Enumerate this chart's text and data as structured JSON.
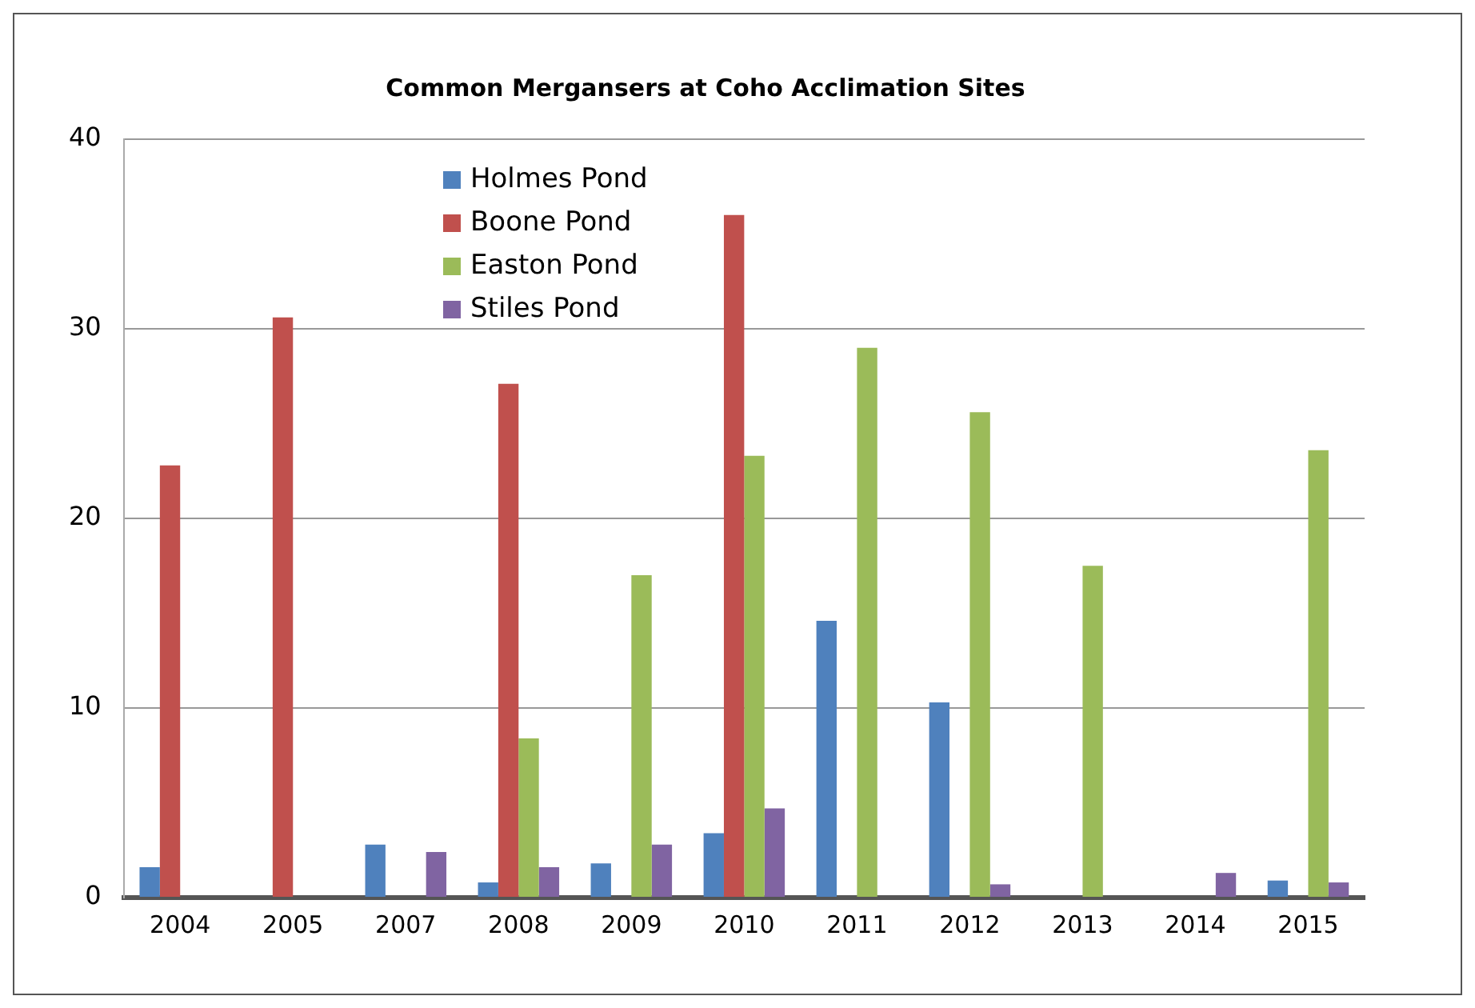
{
  "chart_data": {
    "type": "bar",
    "title": "Common Mergansers at Coho Acclimation Sites",
    "categories": [
      "2004",
      "2005",
      "2007",
      "2008",
      "2009",
      "2010",
      "2011",
      "2012",
      "2013",
      "2014",
      "2015"
    ],
    "series": [
      {
        "name": "Holmes Pond",
        "color": "#4f81bd",
        "values": [
          1.6,
          0,
          2.8,
          0.8,
          1.8,
          3.4,
          14.6,
          10.3,
          0,
          0,
          0.9
        ]
      },
      {
        "name": "Boone Pond",
        "color": "#c0504d",
        "values": [
          22.8,
          30.6,
          0,
          27.1,
          0,
          36,
          0,
          0,
          0,
          0,
          0
        ]
      },
      {
        "name": "Easton Pond",
        "color": "#9bbb59",
        "values": [
          0,
          0,
          0,
          8.4,
          17,
          23.3,
          29,
          25.6,
          17.5,
          0,
          23.6
        ]
      },
      {
        "name": "Stiles Pond",
        "color": "#8064a2",
        "values": [
          0,
          0,
          2.4,
          1.6,
          2.8,
          4.7,
          0,
          0.7,
          0,
          1.3,
          0.8
        ]
      }
    ],
    "ylim": [
      0,
      40
    ],
    "yticks": [
      0,
      10,
      20,
      30,
      40
    ],
    "grid": "y",
    "legend": "top left"
  }
}
